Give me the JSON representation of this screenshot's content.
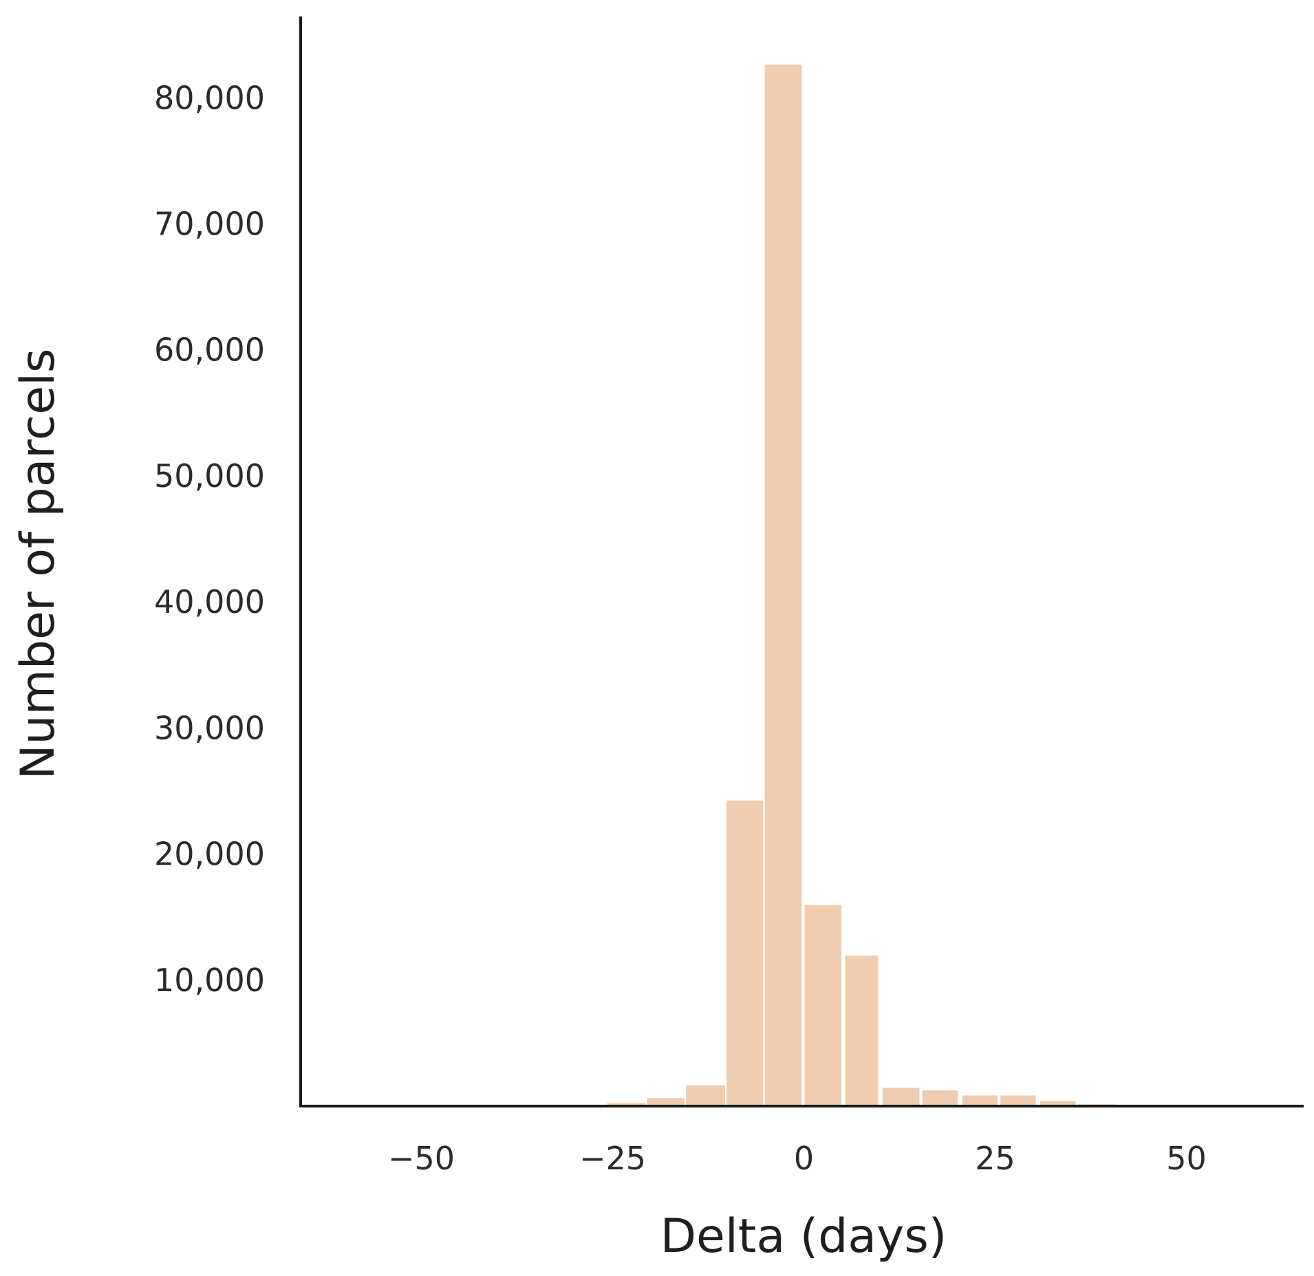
{
  "chart_data": {
    "type": "bar",
    "title": "",
    "xlabel": "Delta (days)",
    "ylabel": "Number of parcels",
    "grid": false,
    "bar_color": "#f0ccb0",
    "axis_color": "#1a1a1a",
    "x_range": [
      -65,
      65
    ],
    "y_range": [
      0,
      88000
    ],
    "x_ticks": [
      {
        "value": -50,
        "label": "−50"
      },
      {
        "value": -25,
        "label": "−25"
      },
      {
        "value": 0,
        "label": "0"
      },
      {
        "value": 25,
        "label": "25"
      },
      {
        "value": 50,
        "label": "50"
      }
    ],
    "y_ticks": [
      {
        "value": 10000,
        "label": "10,000"
      },
      {
        "value": 20000,
        "label": "20,000"
      },
      {
        "value": 30000,
        "label": "30,000"
      },
      {
        "value": 40000,
        "label": "40,000"
      },
      {
        "value": 50000,
        "label": "50,000"
      },
      {
        "value": 60000,
        "label": "60,000"
      },
      {
        "value": 70000,
        "label": "70,000"
      },
      {
        "value": 80000,
        "label": "80,000"
      }
    ],
    "bins": [
      {
        "start": -25.8,
        "end": -20.6,
        "value": 300
      },
      {
        "start": -20.6,
        "end": -15.5,
        "value": 700
      },
      {
        "start": -15.5,
        "end": -10.2,
        "value": 1700
      },
      {
        "start": -10.2,
        "end": -5.2,
        "value": 24300
      },
      {
        "start": -5.2,
        "end": -0.2,
        "value": 82700
      },
      {
        "start": 0.0,
        "end": 5.0,
        "value": 16000
      },
      {
        "start": 5.3,
        "end": 9.8,
        "value": 12000
      },
      {
        "start": 10.2,
        "end": 15.2,
        "value": 1500
      },
      {
        "start": 15.4,
        "end": 20.2,
        "value": 1300
      },
      {
        "start": 20.6,
        "end": 25.4,
        "value": 900
      },
      {
        "start": 25.6,
        "end": 30.4,
        "value": 900
      },
      {
        "start": 30.8,
        "end": 35.6,
        "value": 450
      },
      {
        "start": 35.8,
        "end": 40.8,
        "value": 200
      }
    ]
  }
}
